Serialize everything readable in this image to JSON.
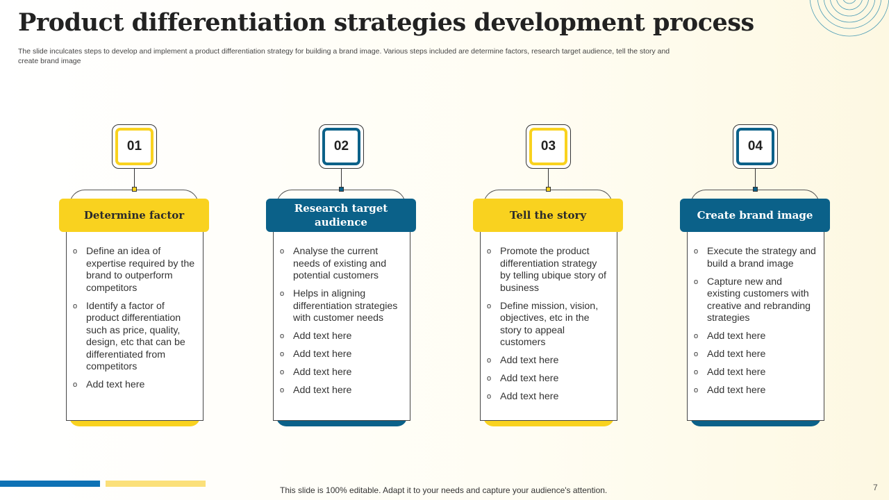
{
  "title": "Product differentiation strategies development process",
  "subtitle": "The slide inculcates steps to develop and implement a product differentiation strategy for building a brand image. Various steps included are determine factors, research target audience, tell the story and create brand image",
  "colors": {
    "yellow": "#f9d21f",
    "blue": "#0b6189"
  },
  "steps": [
    {
      "number": "01",
      "heading": "Determine factor",
      "theme": "yellow",
      "bullets": [
        "Define an idea of expertise required by the brand to outperform competitors",
        "Identify a factor of product differentiation such as price, quality, design, etc that can be differentiated from competitors",
        "Add text here"
      ]
    },
    {
      "number": "02",
      "heading": "Research target audience",
      "theme": "blue",
      "bullets": [
        "Analyse the current needs of existing and potential customers",
        "Helps in aligning differentiation strategies with customer needs",
        "Add text here",
        "Add text here",
        "Add text here",
        "Add text here"
      ]
    },
    {
      "number": "03",
      "heading": "Tell the story",
      "theme": "yellow",
      "bullets": [
        "Promote the product differentiation strategy by telling ubique story of business",
        "Define mission, vision, objectives, etc in the story to appeal customers",
        "Add text here",
        "Add text here",
        "Add text here"
      ]
    },
    {
      "number": "04",
      "heading": "Create brand image",
      "theme": "blue",
      "bullets": [
        "Execute the strategy and build a brand image",
        "Capture new and existing customers with creative and rebranding strategies",
        "Add text here",
        "Add text here",
        "Add text here",
        "Add text here"
      ]
    }
  ],
  "footer": "This slide is 100% editable. Adapt it to your needs and capture your audience's attention.",
  "page_number": "7"
}
